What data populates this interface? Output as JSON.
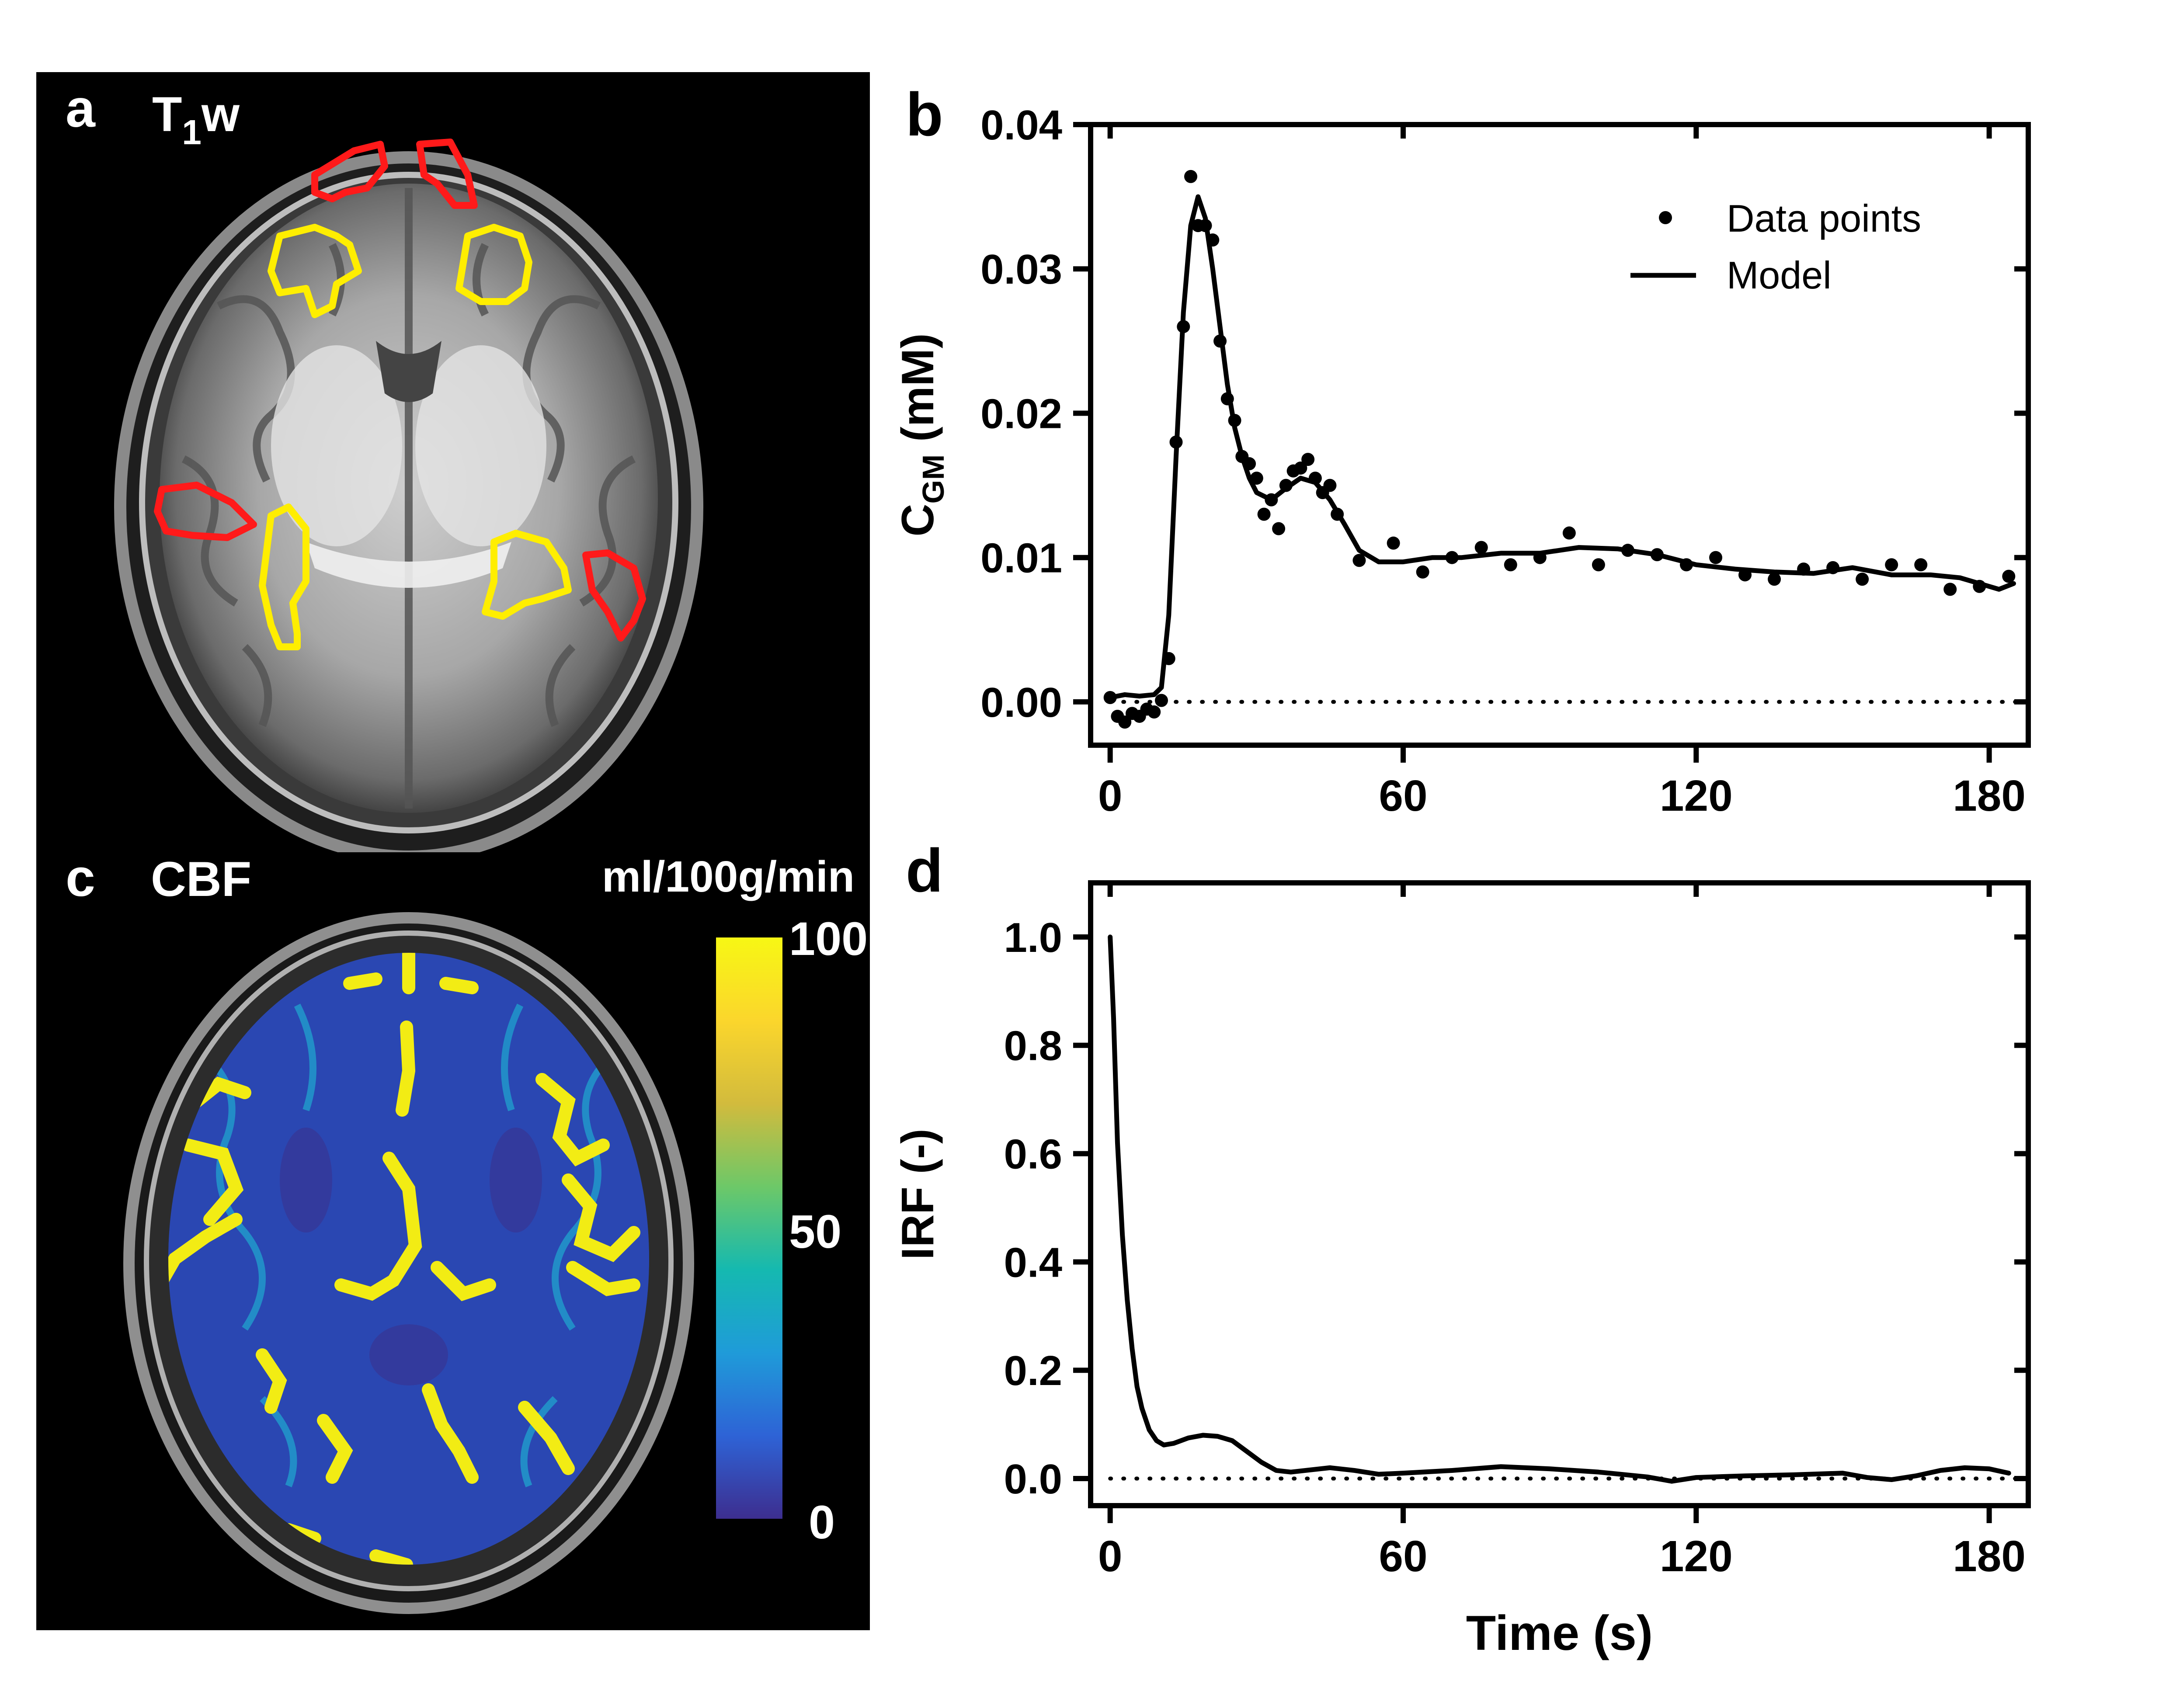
{
  "panels": {
    "a": {
      "letter": "a",
      "title_main": "T",
      "title_sub": "1",
      "title_end": "w",
      "roi_colors": {
        "gray_matter": "#ff1a1a",
        "white_matter": "#ffee00"
      }
    },
    "c": {
      "letter": "c",
      "title": "CBF",
      "colorbar": {
        "unit": "ml/100g/min",
        "tick_max": "100",
        "tick_mid": "50",
        "tick_min": "0",
        "range": [
          0,
          100
        ],
        "colormap": [
          "#3d2e8f",
          "#2e63d6",
          "#1f9bd9",
          "#15b9b0",
          "#6dc868",
          "#d2bb3d",
          "#fbd62c",
          "#f7f714"
        ]
      }
    },
    "b": {
      "letter": "b"
    },
    "d": {
      "letter": "d"
    }
  },
  "chart_data": [
    {
      "panel": "b",
      "type": "scatter",
      "xlabel": "",
      "ylabel_main": "C",
      "ylabel_sub": "GM",
      "ylabel_end": " (mM)",
      "xlim": [
        -4,
        188
      ],
      "ylim": [
        -0.003,
        0.04
      ],
      "xticks": [
        0,
        60,
        120,
        180
      ],
      "xtick_labels": [
        "0",
        "60",
        "120",
        "180"
      ],
      "yticks": [
        0.0,
        0.01,
        0.02,
        0.03,
        0.04
      ],
      "ytick_labels": [
        "0.00",
        "0.01",
        "0.02",
        "0.03",
        "0.04"
      ],
      "reference_line_y": 0,
      "legend": {
        "placement": "top-right",
        "points_label": "Data points",
        "model_label": "Model"
      },
      "series": [
        {
          "name": "Data points",
          "kind": "points",
          "x": [
            0,
            1.5,
            3,
            4.5,
            6,
            7.5,
            9,
            10.5,
            12,
            13.5,
            15,
            16.5,
            18,
            19.5,
            21,
            22.5,
            24,
            25.5,
            27,
            28.5,
            30,
            31.5,
            33,
            34.5,
            36,
            37.5,
            39,
            40.5,
            42,
            43.5,
            45,
            46.5,
            51,
            58,
            64,
            70,
            76,
            82,
            88,
            94,
            100,
            106,
            112,
            118,
            124,
            130,
            136,
            142,
            148,
            154,
            160,
            166,
            172,
            178,
            184
          ],
          "y": [
            0.0003,
            -0.001,
            -0.0014,
            -0.0008,
            -0.001,
            -0.0005,
            -0.0007,
            0.0001,
            0.003,
            0.018,
            0.026,
            0.0364,
            0.033,
            0.033,
            0.032,
            0.025,
            0.021,
            0.0195,
            0.017,
            0.0165,
            0.0155,
            0.013,
            0.014,
            0.012,
            0.015,
            0.016,
            0.0162,
            0.0168,
            0.0155,
            0.0145,
            0.015,
            0.013,
            0.0098,
            0.011,
            0.009,
            0.01,
            0.0107,
            0.0095,
            0.01,
            0.0117,
            0.0095,
            0.0105,
            0.0102,
            0.0095,
            0.01,
            0.0088,
            0.0085,
            0.0092,
            0.0093,
            0.0085,
            0.0095,
            0.0095,
            0.0078,
            0.008,
            0.0087
          ]
        },
        {
          "name": "Model",
          "kind": "line",
          "x": [
            0,
            3,
            6,
            9,
            10.5,
            12,
            13.5,
            15,
            16.5,
            18,
            19.5,
            21,
            22.5,
            24,
            25.5,
            27,
            28.5,
            30,
            33,
            36,
            39,
            42,
            45,
            48,
            51,
            55,
            60,
            66,
            72,
            80,
            88,
            96,
            104,
            112,
            120,
            128,
            136,
            144,
            152,
            160,
            168,
            174,
            178,
            182,
            185
          ],
          "y": [
            0.0003,
            0.0005,
            0.0004,
            0.0005,
            0.001,
            0.006,
            0.017,
            0.027,
            0.033,
            0.035,
            0.0335,
            0.03,
            0.026,
            0.022,
            0.019,
            0.017,
            0.0155,
            0.0145,
            0.014,
            0.0148,
            0.0155,
            0.0152,
            0.014,
            0.0123,
            0.0105,
            0.0097,
            0.0097,
            0.01,
            0.01,
            0.0103,
            0.0103,
            0.0107,
            0.0106,
            0.0102,
            0.0095,
            0.0092,
            0.009,
            0.0089,
            0.0093,
            0.0088,
            0.0088,
            0.0086,
            0.0082,
            0.0078,
            0.0082
          ]
        }
      ]
    },
    {
      "panel": "d",
      "type": "line",
      "xlabel": "Time (s)",
      "ylabel": "IRF (-)",
      "xlim": [
        -4,
        188
      ],
      "ylim": [
        -0.05,
        1.1
      ],
      "xticks": [
        0,
        60,
        120,
        180
      ],
      "xtick_labels": [
        "0",
        "60",
        "120",
        "180"
      ],
      "yticks": [
        0.0,
        0.2,
        0.4,
        0.6,
        0.8,
        1.0
      ],
      "ytick_labels": [
        "0.0",
        "0.2",
        "0.4",
        "0.6",
        "0.8",
        "1.0"
      ],
      "reference_line_y": 0,
      "series": [
        {
          "kind": "line",
          "x": [
            0,
            0.7,
            1.5,
            2.5,
            3.5,
            4.5,
            5.5,
            6.5,
            8,
            9.5,
            11,
            13,
            16,
            19,
            22,
            25,
            28,
            31,
            34,
            37,
            40,
            45,
            50,
            55,
            60,
            70,
            80,
            90,
            100,
            110,
            115,
            120,
            130,
            140,
            150,
            155,
            160,
            165,
            170,
            175,
            180,
            184
          ],
          "y": [
            1.0,
            0.85,
            0.62,
            0.45,
            0.33,
            0.24,
            0.17,
            0.13,
            0.09,
            0.07,
            0.062,
            0.065,
            0.075,
            0.08,
            0.078,
            0.07,
            0.05,
            0.03,
            0.015,
            0.012,
            0.015,
            0.02,
            0.015,
            0.008,
            0.01,
            0.015,
            0.022,
            0.018,
            0.012,
            0.003,
            -0.005,
            0.002,
            0.005,
            0.007,
            0.01,
            0.002,
            -0.002,
            0.005,
            0.015,
            0.02,
            0.018,
            0.01
          ]
        }
      ]
    }
  ]
}
